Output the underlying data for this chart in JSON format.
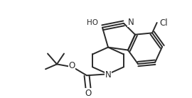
{
  "background_color": "#ffffff",
  "line_color": "#2a2a2a",
  "line_width": 1.4,
  "text_color": "#2a2a2a",
  "font_size": 7.5
}
